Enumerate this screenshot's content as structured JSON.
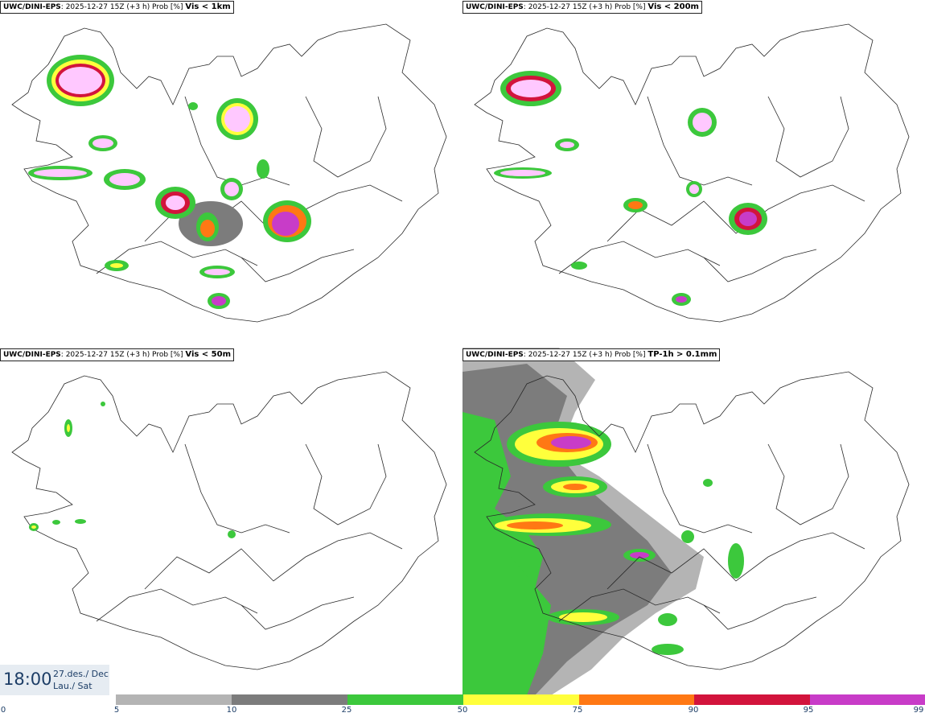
{
  "panels": [
    {
      "model": "UWC/DINI-EPS",
      "run": "2025-12-27 15Z (+3 h) Prob [%]",
      "variable": "Vis < 1km"
    },
    {
      "model": "UWC/DINI-EPS",
      "run": "2025-12-27 15Z (+3 h) Prob [%]",
      "variable": "Vis < 200m"
    },
    {
      "model": "UWC/DINI-EPS",
      "run": "2025-12-27 15Z (+3 h) Prob [%]",
      "variable": "Vis < 50m"
    },
    {
      "model": "UWC/DINI-EPS",
      "run": "2025-12-27 15Z (+3 h) Prob [%]",
      "variable": "TP-1h > 0.1mm"
    }
  ],
  "valid_time": {
    "time": "18:00",
    "date": "27.des./ Dec",
    "day": "Lau./ Sat"
  },
  "colorbar": {
    "ticks": [
      "0",
      "5",
      "10",
      "25",
      "50",
      "75",
      "90",
      "95",
      "99"
    ],
    "colors": [
      "#ffffff",
      "#b4b4b4",
      "#7c7c7c",
      "#3cc83c",
      "#ffff3c",
      "#ff7814",
      "#d2143c",
      "#c83cc8",
      "#ffc8ff"
    ]
  }
}
